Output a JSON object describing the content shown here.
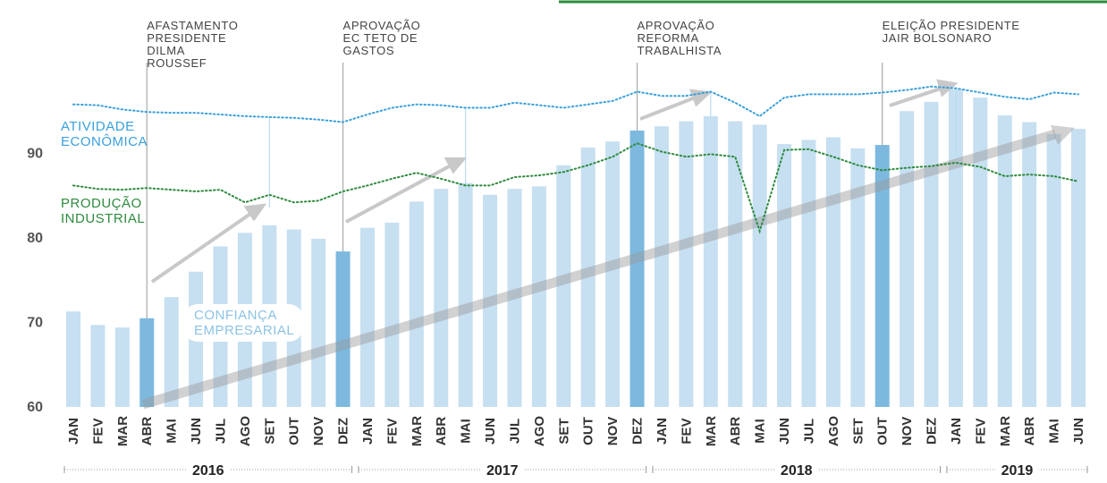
{
  "chart_data": {
    "type": "bar",
    "categories": [
      "JAN",
      "FEV",
      "MAR",
      "ABR",
      "MAI",
      "JUN",
      "JUL",
      "AGO",
      "SET",
      "OUT",
      "NOV",
      "DEZ",
      "JAN",
      "FEV",
      "MAR",
      "ABR",
      "MAI",
      "JUN",
      "JUL",
      "AGO",
      "SET",
      "OUT",
      "NOV",
      "DEZ",
      "JAN",
      "FEV",
      "MAR",
      "ABR",
      "MAI",
      "JUN",
      "JUL",
      "AGO",
      "SET",
      "OUT",
      "NOV",
      "DEZ",
      "JAN",
      "FEV",
      "MAR",
      "ABR",
      "MAI",
      "JUN"
    ],
    "values": [
      71.3,
      69.7,
      69.4,
      70.5,
      73.0,
      76.0,
      79.0,
      80.6,
      81.5,
      81.0,
      79.9,
      78.4,
      81.2,
      81.8,
      84.3,
      85.8,
      86.5,
      85.1,
      85.8,
      86.1,
      88.6,
      90.7,
      91.4,
      92.7,
      93.2,
      93.8,
      94.4,
      93.8,
      93.4,
      91.1,
      91.6,
      91.9,
      90.6,
      91.0,
      95.0,
      96.1,
      97.6,
      96.6,
      94.5,
      93.7,
      92.3,
      92.9
    ],
    "bar_colors": [
      "#c6dff1",
      "#c6dff1",
      "#c6dff1",
      "#7db9de",
      "#c6dff1",
      "#c6dff1",
      "#c6dff1",
      "#c6dff1",
      "#c6dff1",
      "#c6dff1",
      "#c6dff1",
      "#7db9de",
      "#c6dff1",
      "#c6dff1",
      "#c6dff1",
      "#c6dff1",
      "#c6dff1",
      "#c6dff1",
      "#c6dff1",
      "#c6dff1",
      "#c6dff1",
      "#c6dff1",
      "#c6dff1",
      "#7db9de",
      "#c6dff1",
      "#c6dff1",
      "#c6dff1",
      "#c6dff1",
      "#c6dff1",
      "#c6dff1",
      "#c6dff1",
      "#c6dff1",
      "#c6dff1",
      "#7db9de",
      "#c6dff1",
      "#c6dff1",
      "#c6dff1",
      "#c6dff1",
      "#c6dff1",
      "#c6dff1",
      "#c6dff1",
      "#c6dff1"
    ],
    "bar_label": "CONFIANÇA EMPRESARIAL",
    "series": [
      {
        "name": "ATIVIDADE ECONÔMICA",
        "color": "#3aa0dc",
        "values": [
          95.8,
          95.7,
          95.2,
          94.9,
          94.8,
          94.8,
          94.6,
          94.4,
          94.3,
          94.2,
          94.0,
          93.7,
          94.6,
          95.4,
          95.8,
          95.7,
          95.4,
          95.4,
          96.0,
          95.7,
          95.4,
          95.8,
          96.2,
          97.3,
          96.8,
          96.8,
          97.3,
          96.0,
          94.4,
          96.6,
          97.0,
          97.0,
          97.0,
          97.2,
          97.5,
          97.9,
          97.7,
          97.2,
          96.7,
          96.4,
          97.2,
          97.0
        ]
      },
      {
        "name": "PRODUÇÃO INDUSTRIAL",
        "color": "#2e8b3e",
        "values": [
          86.2,
          85.8,
          85.7,
          85.9,
          85.7,
          85.5,
          85.7,
          84.2,
          85.1,
          84.2,
          84.4,
          85.5,
          86.2,
          87.0,
          87.7,
          87.0,
          86.2,
          86.2,
          87.2,
          87.4,
          87.8,
          88.6,
          89.6,
          91.2,
          90.2,
          89.6,
          89.9,
          89.6,
          80.8,
          90.4,
          90.5,
          89.6,
          88.6,
          88.0,
          88.3,
          88.5,
          88.9,
          88.4,
          87.3,
          87.5,
          87.3,
          86.7
        ]
      }
    ],
    "annotations": [
      "AFASTAMENTO PRESIDENTE DILMA ROUSSEF",
      "APROVAÇÃO EC TETO DE GASTOS",
      "APROVAÇÃO REFORMA TRABALHISTA",
      "ELEIÇÃO PRESIDENTE JAIR BOLSONARO"
    ],
    "years": [
      "2016",
      "2017",
      "2018",
      "2019"
    ],
    "ylim": [
      60,
      107
    ],
    "yticks": [
      60,
      70,
      80,
      90
    ]
  }
}
